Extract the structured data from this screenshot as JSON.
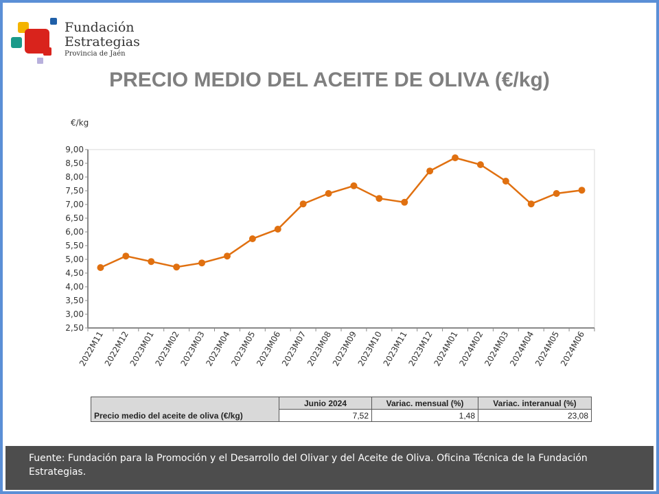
{
  "logo": {
    "line1": "Fundación",
    "line2": "Estrategias",
    "line3": "Provincia de Jaén"
  },
  "title": "PRECIO MEDIO DEL ACEITE DE OLIVA (€/kg)",
  "chart_data": {
    "type": "line",
    "title": "PRECIO MEDIO DEL ACEITE DE OLIVA (€/kg)",
    "ylabel": "€/kg",
    "xlabel": "",
    "ylim": [
      2.5,
      9.0
    ],
    "yticks": [
      "2,50",
      "3,00",
      "3,50",
      "4,00",
      "4,50",
      "5,00",
      "5,50",
      "6,00",
      "6,50",
      "7,00",
      "7,50",
      "8,00",
      "8,50",
      "9,00"
    ],
    "categories": [
      "2022M11",
      "2022M12",
      "2023M01",
      "2023M02",
      "2023M03",
      "2023M04",
      "2023M05",
      "2023M06",
      "2023M07",
      "2023M08",
      "2023M09",
      "2023M10",
      "2023M11",
      "2023M12",
      "2024M01",
      "2024M02",
      "2024M03",
      "2024M04",
      "2024M05",
      "2024M06"
    ],
    "values": [
      4.7,
      5.12,
      4.92,
      4.72,
      4.87,
      5.12,
      5.75,
      6.1,
      7.02,
      7.4,
      7.68,
      7.22,
      7.08,
      8.22,
      8.7,
      8.45,
      7.85,
      7.02,
      7.4,
      7.52
    ],
    "grid": false,
    "legend": "none",
    "color": "#e07010"
  },
  "table": {
    "row_label": "Precio medio del aceite de oliva (€/kg)",
    "headers": [
      "Junio 2024",
      "Variac. mensual (%)",
      "Variac. interanual (%)"
    ],
    "values": [
      "7,52",
      "1,48",
      "23,08"
    ]
  },
  "footer": {
    "source": "Fuente: Fundación para la Promoción y el Desarrollo del Olivar y del Aceite de Oliva. Oficina Técnica de la Fundación Estrategias."
  }
}
